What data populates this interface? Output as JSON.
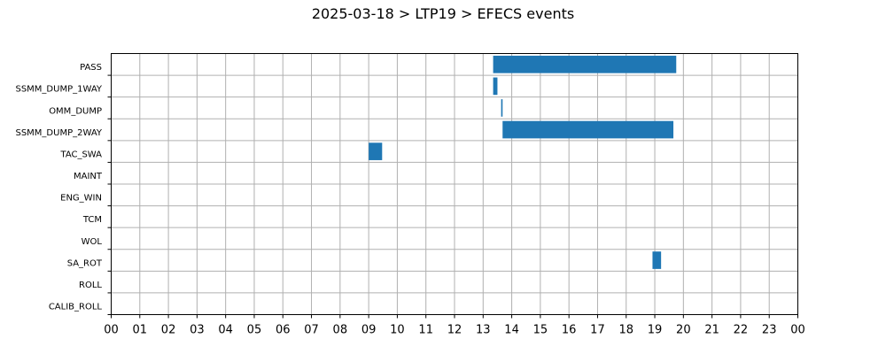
{
  "chart_data": {
    "type": "gantt",
    "title": "2025-03-18 > LTP19 > EFECS events",
    "xlabel": "",
    "ylabel": "",
    "x_unit": "hour of day",
    "xlim": [
      0,
      24
    ],
    "x_ticks": [
      0,
      1,
      2,
      3,
      4,
      5,
      6,
      7,
      8,
      9,
      10,
      11,
      12,
      13,
      14,
      15,
      16,
      17,
      18,
      19,
      20,
      21,
      22,
      23,
      24
    ],
    "x_tick_labels": [
      "00",
      "01",
      "02",
      "03",
      "04",
      "05",
      "06",
      "07",
      "08",
      "09",
      "10",
      "11",
      "12",
      "13",
      "14",
      "15",
      "16",
      "17",
      "18",
      "19",
      "20",
      "21",
      "22",
      "23",
      "00"
    ],
    "grid": true,
    "bar_color": "#1f77b4",
    "categories": [
      "PASS",
      "SSMM_DUMP_1WAY",
      "OMM_DUMP",
      "SSMM_DUMP_2WAY",
      "TAC_SWA",
      "MAINT",
      "ENG_WIN",
      "TCM",
      "WOL",
      "SA_ROT",
      "ROLL",
      "CALIB_ROLL"
    ],
    "events": [
      {
        "category": "PASS",
        "start": 13.35,
        "end": 19.75
      },
      {
        "category": "SSMM_DUMP_1WAY",
        "start": 13.35,
        "end": 13.5
      },
      {
        "category": "OMM_DUMP",
        "start": 13.63,
        "end": 13.68
      },
      {
        "category": "SSMM_DUMP_2WAY",
        "start": 13.68,
        "end": 19.65
      },
      {
        "category": "TAC_SWA",
        "start": 9.0,
        "end": 9.47
      },
      {
        "category": "SA_ROT",
        "start": 18.92,
        "end": 19.22
      }
    ]
  }
}
